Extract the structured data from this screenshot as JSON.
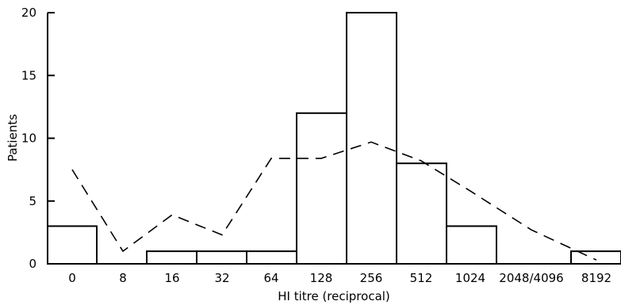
{
  "chart_data": {
    "type": "bar",
    "categories": [
      "0",
      "8",
      "16",
      "32",
      "64",
      "128",
      "256",
      "512",
      "1024",
      "2048/4096",
      "8192"
    ],
    "series": [
      {
        "values": [
          3,
          0,
          1,
          1,
          1,
          12,
          20,
          8,
          3,
          0,
          1
        ]
      },
      {
        "values": [
          7.5,
          1,
          3.9,
          2.3,
          8.4,
          8.4,
          9.7,
          8.2,
          5.8,
          2.7,
          0.3
        ]
      }
    ],
    "xlabel": "HI titre (reciprocal)",
    "ylabel": "Patients",
    "ylim": [
      0,
      20
    ],
    "yticks": [
      "0",
      "5",
      "10",
      "15",
      "20"
    ],
    "grid": false
  },
  "colors": {
    "bars_stroke": "#000000",
    "bars_fill": "#ffffff",
    "line": "#000000"
  }
}
